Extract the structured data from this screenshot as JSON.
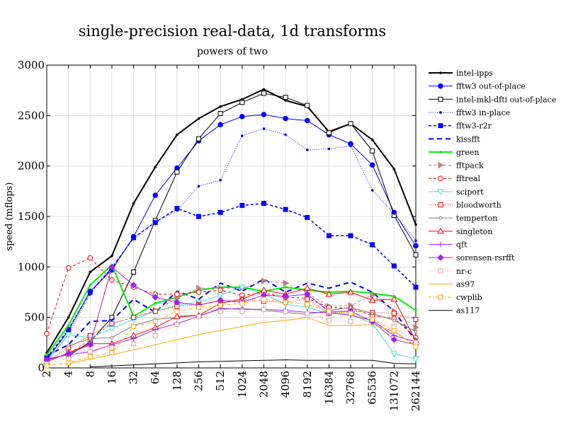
{
  "chart_data": {
    "type": "line",
    "title": "single-precision real-data, 1d transforms",
    "subtitle": "powers of two",
    "xlabel": "",
    "ylabel": "speed (mflops)",
    "ylim": [
      0,
      3000
    ],
    "yticks": [
      "0",
      "500",
      "1000",
      "1500",
      "2000",
      "2500",
      "3000"
    ],
    "categories": [
      "2",
      "4",
      "8",
      "16",
      "32",
      "64",
      "128",
      "256",
      "512",
      "1024",
      "2048",
      "4096",
      "8192",
      "16384",
      "32768",
      "65536",
      "131072",
      "262144"
    ],
    "grid": true,
    "legend_position": "right",
    "series": [
      {
        "name": "intel-ipps",
        "color": "#000000",
        "width": 2,
        "dash": "",
        "marker": "dot",
        "values": [
          150,
          500,
          950,
          1110,
          1630,
          1990,
          2310,
          2470,
          2590,
          2660,
          2760,
          2650,
          2590,
          2340,
          2420,
          2260,
          1970,
          1420
        ]
      },
      {
        "name": "fftw3 out-of-place",
        "color": "#0000ff",
        "width": 1,
        "dash": "",
        "marker": "circle-filled",
        "values": [
          80,
          370,
          760,
          970,
          1300,
          1710,
          1980,
          2250,
          2410,
          2490,
          2510,
          2470,
          2450,
          2310,
          2220,
          2010,
          1540,
          1210
        ]
      },
      {
        "name": "intel-mkl-dfti out-of-place",
        "color": "#000000",
        "width": 1,
        "dash": "",
        "marker": "square-open",
        "values": [
          null,
          120,
          260,
          500,
          950,
          1460,
          1940,
          2270,
          2520,
          2630,
          2720,
          2680,
          2600,
          2330,
          2420,
          2150,
          1510,
          1120
        ]
      },
      {
        "name": "fftw3 in-place",
        "color": "#0000ff",
        "width": 1,
        "dash": "1,2",
        "marker": "dot",
        "values": [
          60,
          340,
          730,
          1000,
          1280,
          1450,
          1560,
          1800,
          1860,
          2300,
          2370,
          2310,
          2160,
          2170,
          2200,
          1760,
          1530,
          1260
        ]
      },
      {
        "name": "fftw3-r2r",
        "color": "#0000ff",
        "width": 1.5,
        "dash": "4,3",
        "marker": "square-filled",
        "values": [
          100,
          380,
          750,
          990,
          1290,
          1440,
          1580,
          1500,
          1540,
          1610,
          1630,
          1570,
          1490,
          1310,
          1310,
          1220,
          1010,
          800
        ]
      },
      {
        "name": "kissfft",
        "color": "#0000ff",
        "width": 2,
        "dash": "7,5",
        "marker": "none",
        "values": [
          120,
          230,
          460,
          470,
          680,
          550,
          760,
          680,
          840,
          760,
          880,
          750,
          840,
          790,
          850,
          750,
          560,
          270
        ]
      },
      {
        "name": "green",
        "color": "#00ee00",
        "width": 2,
        "dash": "",
        "marker": "dot",
        "values": [
          130,
          420,
          820,
          1020,
          510,
          640,
          700,
          770,
          800,
          800,
          760,
          800,
          770,
          750,
          760,
          740,
          710,
          570
        ]
      },
      {
        "name": "fftpack",
        "color": "#c08080",
        "width": 1,
        "dash": "4,3",
        "marker": "triangle-right",
        "values": [
          70,
          140,
          280,
          440,
          500,
          570,
          690,
          790,
          790,
          790,
          860,
          840,
          740,
          610,
          620,
          720,
          560,
          400
        ]
      },
      {
        "name": "fftreal",
        "color": "#ff0000",
        "width": 1,
        "dash": "4,3",
        "marker": "circle-open",
        "values": [
          340,
          990,
          1090,
          870,
          800,
          730,
          730,
          750,
          770,
          720,
          740,
          700,
          690,
          600,
          590,
          520,
          490,
          300
        ]
      },
      {
        "name": "sciport",
        "color": "#40e0d0",
        "width": 1,
        "dash": "",
        "marker": "triangle-down",
        "values": [
          60,
          330,
          300,
          390,
          480,
          560,
          620,
          650,
          720,
          800,
          730,
          630,
          600,
          540,
          530,
          440,
          140,
          90
        ]
      },
      {
        "name": "bloodworth",
        "color": "#ff0000",
        "width": 1,
        "dash": "1,2",
        "marker": "square-open",
        "values": [
          60,
          200,
          320,
          440,
          500,
          560,
          610,
          630,
          660,
          680,
          660,
          650,
          680,
          540,
          560,
          550,
          540,
          480
        ]
      },
      {
        "name": "temperton",
        "color": "#808080",
        "width": 1,
        "dash": "",
        "marker": "circle-small",
        "values": [
          null,
          220,
          290,
          300,
          420,
          480,
          500,
          520,
          580,
          590,
          570,
          550,
          530,
          570,
          600,
          540,
          470,
          360
        ]
      },
      {
        "name": "singleton",
        "color": "#ff0000",
        "width": 1,
        "dash": "",
        "marker": "triangle-open",
        "values": [
          60,
          150,
          240,
          240,
          320,
          400,
          510,
          520,
          640,
          680,
          770,
          730,
          790,
          730,
          750,
          670,
          680,
          270
        ]
      },
      {
        "name": "qft",
        "color": "#a020f0",
        "width": 1,
        "dash": "",
        "marker": "plus",
        "values": [
          90,
          130,
          160,
          230,
          290,
          380,
          440,
          510,
          590,
          580,
          580,
          570,
          550,
          550,
          520,
          470,
          320,
          260
        ]
      },
      {
        "name": "sorensen-rsrfft",
        "color": "#a020f0",
        "width": 1,
        "dash": "",
        "marker": "diamond",
        "values": [
          80,
          140,
          230,
          1000,
          820,
          700,
          650,
          620,
          670,
          650,
          720,
          710,
          730,
          560,
          560,
          460,
          280,
          230
        ]
      },
      {
        "name": "nr-c",
        "color": "#e0a0a0",
        "width": 1,
        "dash": "1,2",
        "marker": "square-open",
        "values": [
          40,
          90,
          160,
          200,
          240,
          320,
          430,
          510,
          560,
          560,
          580,
          560,
          540,
          470,
          460,
          480,
          410,
          250
        ]
      },
      {
        "name": "as97",
        "color": "#ffa500",
        "width": 1,
        "dash": "",
        "marker": "none",
        "values": [
          null,
          40,
          90,
          130,
          180,
          230,
          280,
          330,
          370,
          410,
          450,
          470,
          500,
          420,
          420,
          430,
          360,
          220
        ]
      },
      {
        "name": "cwplib",
        "color": "#ffa500",
        "width": 1,
        "dash": "4,2,1,2",
        "marker": "square-open",
        "values": [
          20,
          50,
          110,
          150,
          410,
          460,
          560,
          600,
          620,
          640,
          680,
          650,
          630,
          560,
          540,
          480,
          370,
          210
        ]
      },
      {
        "name": "as117",
        "color": "#000000",
        "width": 1,
        "dash": "",
        "marker": "none",
        "values": [
          null,
          null,
          10,
          20,
          30,
          40,
          50,
          60,
          65,
          70,
          75,
          80,
          75,
          75,
          75,
          75,
          45,
          40
        ]
      }
    ]
  }
}
